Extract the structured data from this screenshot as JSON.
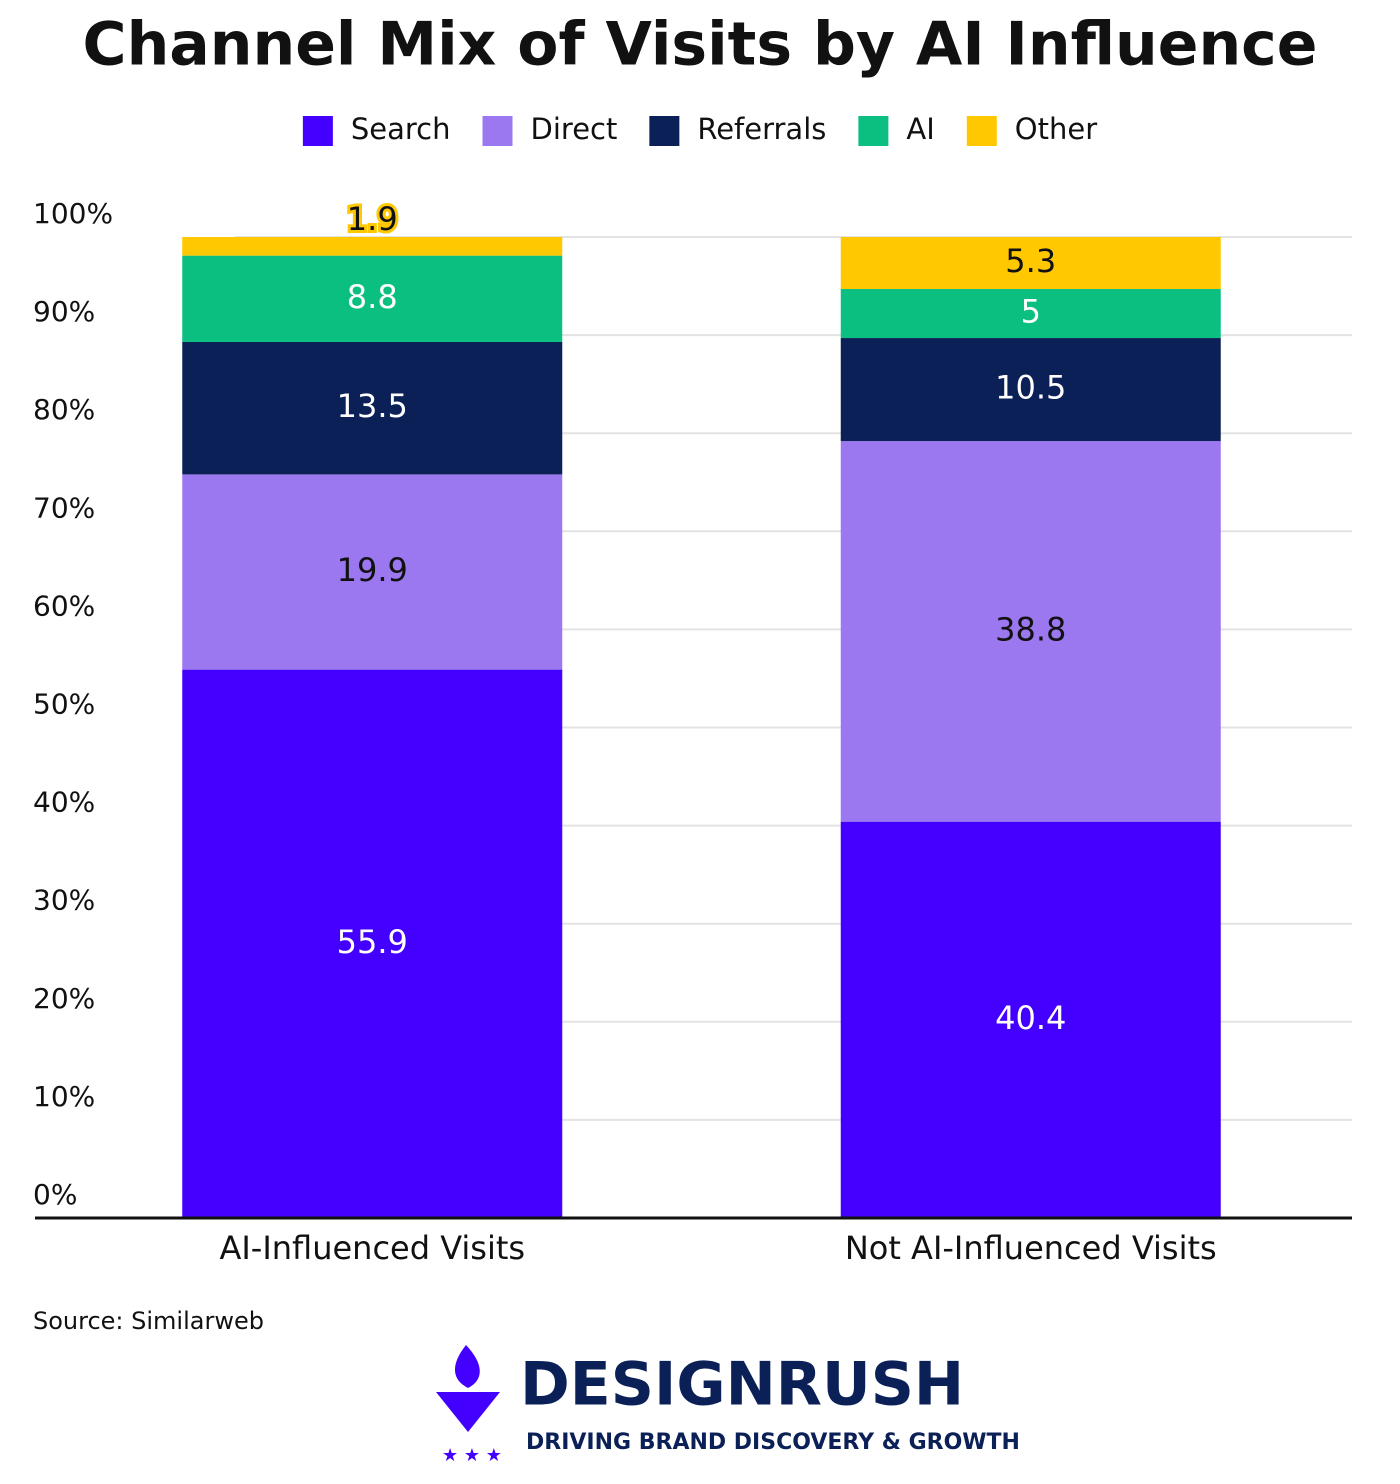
{
  "chart_data": {
    "type": "stacked_bar",
    "title": "Channel Mix of Visits by AI Influence",
    "categories": [
      "AI-Influenced Visits",
      "Not AI-Influenced Visits"
    ],
    "series": [
      {
        "name": "Search",
        "color": "#4400ff",
        "values": [
          55.9,
          40.4
        ]
      },
      {
        "name": "Direct",
        "color": "#9b77f0",
        "values": [
          19.9,
          38.8
        ]
      },
      {
        "name": "Referrals",
        "color": "#0b2057",
        "values": [
          13.5,
          10.5
        ]
      },
      {
        "name": "AI",
        "color": "#0bbf80",
        "values": [
          8.8,
          5
        ]
      },
      {
        "name": "Other",
        "color": "#ffc800",
        "values": [
          1.9,
          5.3
        ]
      }
    ],
    "ylim": [
      0,
      100
    ],
    "yticks": [
      {
        "value": 0,
        "label": "0%"
      },
      {
        "value": 10,
        "label": "10%"
      },
      {
        "value": 20,
        "label": "20%"
      },
      {
        "value": 30,
        "label": "30%"
      },
      {
        "value": 40,
        "label": "40%"
      },
      {
        "value": 50,
        "label": "50%"
      },
      {
        "value": 60,
        "label": "60%"
      },
      {
        "value": 70,
        "label": "70%"
      },
      {
        "value": 80,
        "label": "80%"
      },
      {
        "value": 90,
        "label": "90%"
      },
      {
        "value": 100,
        "label": "100%"
      }
    ],
    "grid": true,
    "legend": "top",
    "source": "Source: Similarweb"
  },
  "logo": {
    "name": "DESIGNRUSH",
    "tagline": "DRIVING BRAND DISCOVERY & GROWTH"
  }
}
